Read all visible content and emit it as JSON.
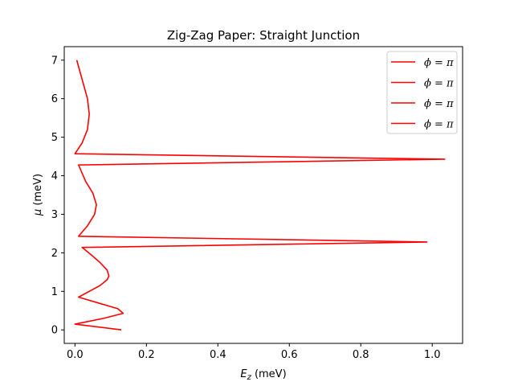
{
  "chart_data": {
    "type": "line",
    "title": "Zig-Zag Paper: Straight Junction",
    "xlabel_var": "E",
    "xlabel_sub": "z",
    "xlabel_unit": " (meV)",
    "ylabel_var": "μ",
    "ylabel_unit": " (meV)",
    "xlim": [
      -0.03,
      1.085
    ],
    "ylim": [
      -0.35,
      7.35
    ],
    "xticks": [
      0.0,
      0.2,
      0.4,
      0.6,
      0.8,
      1.0
    ],
    "xtick_labels": [
      "0.0",
      "0.2",
      "0.4",
      "0.6",
      "0.8",
      "1.0"
    ],
    "yticks": [
      0,
      1,
      2,
      3,
      4,
      5,
      6,
      7
    ],
    "ytick_labels": [
      "0",
      "1",
      "2",
      "3",
      "4",
      "5",
      "6",
      "7"
    ],
    "grid": false,
    "legend_placement": "top-right",
    "legend": [
      "ϕ = π",
      "ϕ = π",
      "ϕ = π",
      "ϕ = π"
    ],
    "series": [
      {
        "color": "#ff0000",
        "points": [
          [
            0.13,
            0.0
          ],
          [
            0.0,
            0.15
          ],
          [
            0.08,
            0.3
          ],
          [
            0.135,
            0.43
          ],
          [
            0.12,
            0.55
          ],
          [
            0.01,
            0.85
          ],
          [
            0.04,
            1.0
          ],
          [
            0.07,
            1.15
          ],
          [
            0.09,
            1.3
          ],
          [
            0.095,
            1.4
          ],
          [
            0.09,
            1.55
          ],
          [
            0.07,
            1.75
          ],
          [
            0.045,
            1.95
          ],
          [
            0.02,
            2.14
          ],
          [
            0.985,
            2.28
          ],
          [
            0.01,
            2.43
          ],
          [
            0.035,
            2.7
          ],
          [
            0.055,
            3.0
          ],
          [
            0.06,
            3.25
          ],
          [
            0.05,
            3.55
          ],
          [
            0.03,
            3.85
          ],
          [
            0.01,
            4.28
          ],
          [
            1.035,
            4.43
          ],
          [
            0.0,
            4.57
          ],
          [
            0.02,
            4.85
          ],
          [
            0.035,
            5.2
          ],
          [
            0.04,
            5.6
          ],
          [
            0.035,
            6.0
          ],
          [
            0.02,
            6.5
          ],
          [
            0.005,
            7.0
          ]
        ]
      }
    ]
  }
}
